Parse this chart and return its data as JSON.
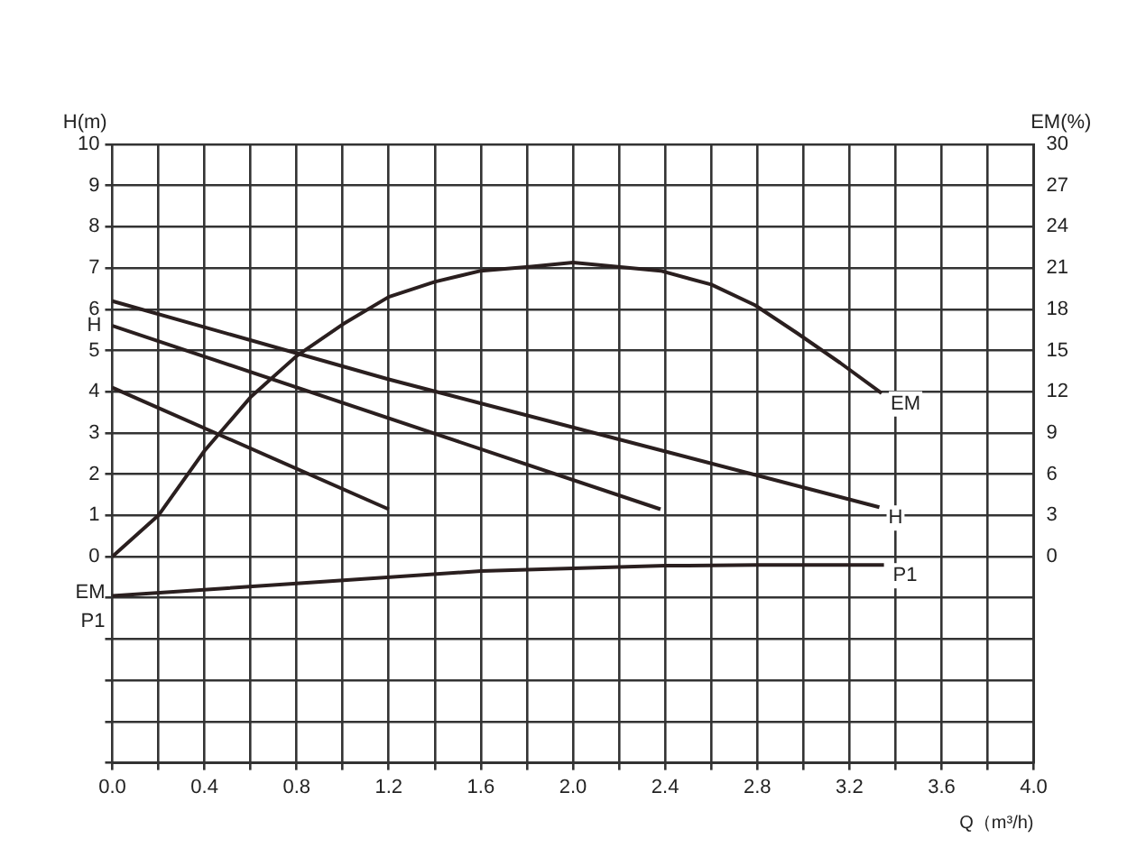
{
  "chart_data": {
    "type": "line",
    "xlabel": "Q（m³/h)",
    "ylabel": "H(m)",
    "y2label": "EM(%)",
    "xlim": [
      0,
      4
    ],
    "xticks": [
      {
        "value": 0,
        "label": "0.0"
      },
      {
        "value": 0.2,
        "label": null
      },
      {
        "value": 0.4,
        "label": "0.4"
      },
      {
        "value": 0.6,
        "label": null
      },
      {
        "value": 0.8,
        "label": "0.8"
      },
      {
        "value": 1,
        "label": null
      },
      {
        "value": 1.2,
        "label": "1.2"
      },
      {
        "value": 1.4,
        "label": null
      },
      {
        "value": 1.6,
        "label": "1.6"
      },
      {
        "value": 1.8,
        "label": null
      },
      {
        "value": 2,
        "label": "2.0"
      },
      {
        "value": 2.2,
        "label": null
      },
      {
        "value": 2.4,
        "label": "2.4"
      },
      {
        "value": 2.6,
        "label": null
      },
      {
        "value": 2.8,
        "label": "2.8"
      },
      {
        "value": 3,
        "label": null
      },
      {
        "value": 3.2,
        "label": "3.2"
      },
      {
        "value": 3.4,
        "label": null
      },
      {
        "value": 3.6,
        "label": "3.6"
      },
      {
        "value": 3.8,
        "label": null
      },
      {
        "value": 4,
        "label": "4.0"
      }
    ],
    "ylim": [
      -5,
      10
    ],
    "yticks": [
      {
        "value": -5,
        "label": null
      },
      {
        "value": -4,
        "label": null
      },
      {
        "value": -3,
        "label": null
      },
      {
        "value": -2,
        "label": null
      },
      {
        "value": -1,
        "label": null
      },
      0,
      1,
      2,
      3,
      4,
      5,
      6,
      7,
      8,
      9,
      10
    ],
    "y2lim": [
      -15,
      30
    ],
    "y2ticks": [
      0,
      3,
      6,
      9,
      12,
      15,
      18,
      21,
      24,
      27,
      30
    ],
    "grid": true,
    "legend": false,
    "marker": "none",
    "line_style": "solid",
    "series": [
      {
        "name": "H",
        "color": "#2a1f1f",
        "x": [
          0,
          1.2,
          3.33
        ],
        "values": [
          6.2,
          4.3,
          1.2
        ]
      },
      {
        "color": "#2a1f1f",
        "x": [
          0,
          2.38
        ],
        "values": [
          5.6,
          1.15
        ]
      },
      {
        "color": "#2a1f1f",
        "x": [
          0,
          1.2
        ],
        "values": [
          4.1,
          1.15
        ]
      },
      {
        "name": "EM",
        "color": "#2a1f1f",
        "axis": "y2",
        "x": [
          0,
          0.2,
          0.4,
          0.6,
          0.8,
          1.0,
          1.2,
          1.4,
          1.6,
          1.82,
          2.0,
          2.38,
          2.6,
          2.79,
          2.97,
          3.16,
          3.34
        ],
        "values": [
          0,
          3,
          7.7,
          11.6,
          14.6,
          16.9,
          18.9,
          20,
          20.8,
          21.1,
          21.4,
          20.8,
          19.8,
          18.3,
          16.3,
          14.1,
          11.9
        ]
      },
      {
        "name": "P1",
        "color": "#2a1f1f",
        "x": [
          0,
          0.8,
          1.6,
          2.4,
          2.8,
          3.35
        ],
        "values": [
          -0.95,
          -0.65,
          -0.35,
          -0.22,
          -0.2,
          -0.2
        ]
      }
    ],
    "annotations": [
      {
        "text": "H",
        "x": 0,
        "y": 5.6
      },
      "EM",
      "P1"
    ]
  }
}
